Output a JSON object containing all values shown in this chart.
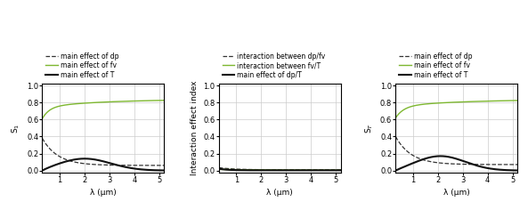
{
  "figsize": [
    5.93,
    2.36
  ],
  "dpi": 100,
  "background_color": "#ffffff",
  "subplots": [
    {
      "ylabel": "S$_1$",
      "xlabel": "λ (μm)",
      "xlim": [
        0.3,
        5.2
      ],
      "ylim": [
        -0.02,
        1.02
      ],
      "yticks": [
        0.0,
        0.2,
        0.4,
        0.6,
        0.8,
        1.0
      ],
      "xticks": [
        1,
        2,
        3,
        4,
        5
      ],
      "legend": [
        {
          "label": "main effect of dp",
          "color": "#333333",
          "linestyle": "--",
          "linewidth": 0.9
        },
        {
          "label": "main effect of fv",
          "color": "#7db72f",
          "linestyle": "-",
          "linewidth": 1.0
        },
        {
          "label": "main effect of T",
          "color": "#111111",
          "linestyle": "-",
          "linewidth": 1.5
        }
      ]
    },
    {
      "ylabel": "Interaction effect index",
      "xlabel": "λ (μm)",
      "xlim": [
        0.3,
        5.2
      ],
      "ylim": [
        -0.02,
        1.02
      ],
      "yticks": [
        0.0,
        0.2,
        0.4,
        0.6,
        0.8,
        1.0
      ],
      "xticks": [
        1,
        2,
        3,
        4,
        5
      ],
      "legend": [
        {
          "label": "interaction between dp/fv",
          "color": "#333333",
          "linestyle": "--",
          "linewidth": 0.9
        },
        {
          "label": "interaction between fv/T",
          "color": "#7db72f",
          "linestyle": "-",
          "linewidth": 1.0
        },
        {
          "label": "main effect of dp/T",
          "color": "#111111",
          "linestyle": "-",
          "linewidth": 1.5
        }
      ]
    },
    {
      "ylabel": "S$_T$",
      "xlabel": "λ (μm)",
      "xlim": [
        0.3,
        5.2
      ],
      "ylim": [
        -0.02,
        1.02
      ],
      "yticks": [
        0.0,
        0.2,
        0.4,
        0.6,
        0.8,
        1.0
      ],
      "xticks": [
        1,
        2,
        3,
        4,
        5
      ],
      "legend": [
        {
          "label": "main effect of dp",
          "color": "#333333",
          "linestyle": "--",
          "linewidth": 0.9
        },
        {
          "label": "main effect of fv",
          "color": "#7db72f",
          "linestyle": "-",
          "linewidth": 1.0
        },
        {
          "label": "main effect of T",
          "color": "#111111",
          "linestyle": "-",
          "linewidth": 1.5
        }
      ]
    }
  ],
  "grid_color": "#cccccc",
  "legend_fontsize": 5.5,
  "axis_fontsize": 6.5,
  "tick_fontsize": 6.0
}
